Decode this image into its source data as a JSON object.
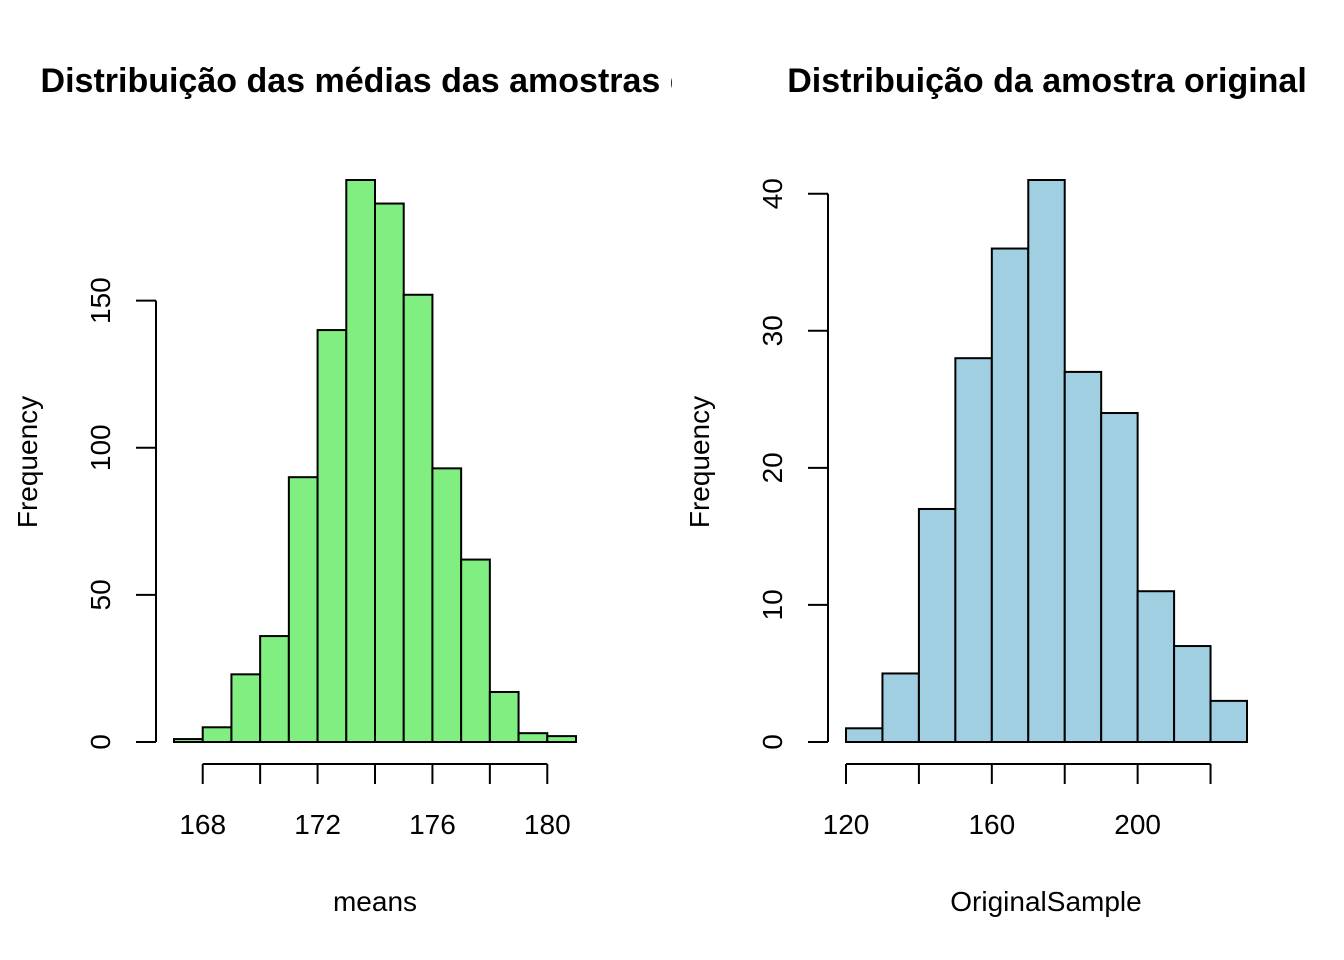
{
  "chart_data": [
    {
      "type": "bar",
      "title": "Distribuição das médias das amostras de ",
      "xlabel": "means",
      "ylabel": "Frequency",
      "color": "#80EE80",
      "bin_edges": [
        167,
        168,
        169,
        170,
        171,
        172,
        173,
        174,
        175,
        176,
        177,
        178,
        179,
        180,
        181
      ],
      "values": [
        1,
        5,
        23,
        36,
        90,
        140,
        191,
        183,
        152,
        93,
        62,
        17,
        3,
        2
      ],
      "xticks": [
        168,
        172,
        176,
        180
      ],
      "xtick_marks": [
        168,
        170,
        172,
        174,
        176,
        178,
        180
      ],
      "yticks": [
        0,
        50,
        100,
        150
      ],
      "xlim": [
        167,
        181
      ],
      "ylim": [
        0,
        191
      ]
    },
    {
      "type": "bar",
      "title": "Distribuição da amostra original",
      "xlabel": "OriginalSample",
      "ylabel": "Frequency",
      "color": "#9FCFE1",
      "bin_edges": [
        120,
        130,
        140,
        150,
        160,
        170,
        180,
        190,
        200,
        210,
        220,
        230
      ],
      "values": [
        1,
        5,
        17,
        28,
        36,
        41,
        27,
        24,
        11,
        7,
        3
      ],
      "xticks": [
        120,
        160,
        200
      ],
      "xtick_marks": [
        120,
        140,
        160,
        180,
        200,
        220
      ],
      "yticks": [
        0,
        10,
        20,
        30,
        40
      ],
      "xlim": [
        120,
        230
      ],
      "ylim": [
        0,
        41
      ]
    }
  ]
}
